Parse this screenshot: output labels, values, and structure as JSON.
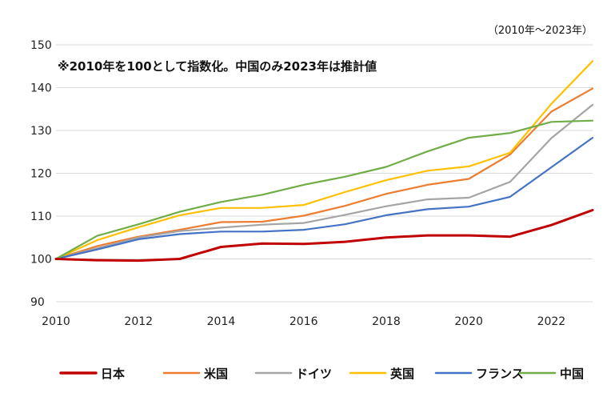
{
  "chart_data": {
    "type": "line",
    "title": "",
    "range_note": "（2010年～2023年）",
    "annotation": "※2010年を100として指数化。中国のみ2023年は推計値",
    "xlabel": "",
    "ylabel": "",
    "x": [
      2010,
      2011,
      2012,
      2013,
      2014,
      2015,
      2016,
      2017,
      2018,
      2019,
      2020,
      2021,
      2022,
      2023
    ],
    "x_ticks": [
      "2010",
      "2012",
      "2014",
      "2016",
      "2018",
      "2020",
      "2022"
    ],
    "x_tick_values": [
      2010,
      2012,
      2014,
      2016,
      2018,
      2020,
      2022
    ],
    "xlim": [
      2010,
      2023
    ],
    "ylim": [
      90,
      150
    ],
    "y_ticks": [
      "90",
      "100",
      "110",
      "120",
      "130",
      "140",
      "150"
    ],
    "y_tick_values": [
      90,
      100,
      110,
      120,
      130,
      140,
      150
    ],
    "grid": true,
    "legend_position": "bottom",
    "series": [
      {
        "name": "日本",
        "color": "#c00000",
        "bold": true,
        "values": [
          100,
          99.7,
          99.6,
          100,
          102.8,
          103.6,
          103.5,
          104,
          105,
          105.5,
          105.5,
          105.2,
          107.9,
          111.4
        ]
      },
      {
        "name": "米国",
        "color": "#ed7d31",
        "bold": false,
        "values": [
          100,
          103,
          105.2,
          106.8,
          108.6,
          108.7,
          110.1,
          112.4,
          115.2,
          117.3,
          118.7,
          124.4,
          134.4,
          139.8
        ]
      },
      {
        "name": "ドイツ",
        "color": "#a5a5a5",
        "bold": false,
        "values": [
          100,
          102.5,
          105,
          106.5,
          107.3,
          108,
          108.4,
          110.3,
          112.3,
          113.9,
          114.3,
          118,
          128.2,
          136
        ]
      },
      {
        "name": "英国",
        "color": "#ffc000",
        "bold": false,
        "values": [
          100,
          104.4,
          107.4,
          110.2,
          111.9,
          111.9,
          112.6,
          115.6,
          118.4,
          120.6,
          121.6,
          124.8,
          136.2,
          146.2
        ]
      },
      {
        "name": "フランス",
        "color": "#4472c4",
        "bold": false,
        "values": [
          100,
          102.2,
          104.6,
          105.8,
          106.4,
          106.4,
          106.8,
          108.1,
          110.2,
          111.6,
          112.2,
          114.5,
          121.4,
          128.3
        ]
      },
      {
        "name": "中国",
        "color": "#70ad47",
        "bold": false,
        "values": [
          100,
          105.4,
          108.1,
          111,
          113.3,
          115,
          117.3,
          119.2,
          121.5,
          125.1,
          128.3,
          129.4,
          132,
          132.3
        ]
      }
    ]
  }
}
